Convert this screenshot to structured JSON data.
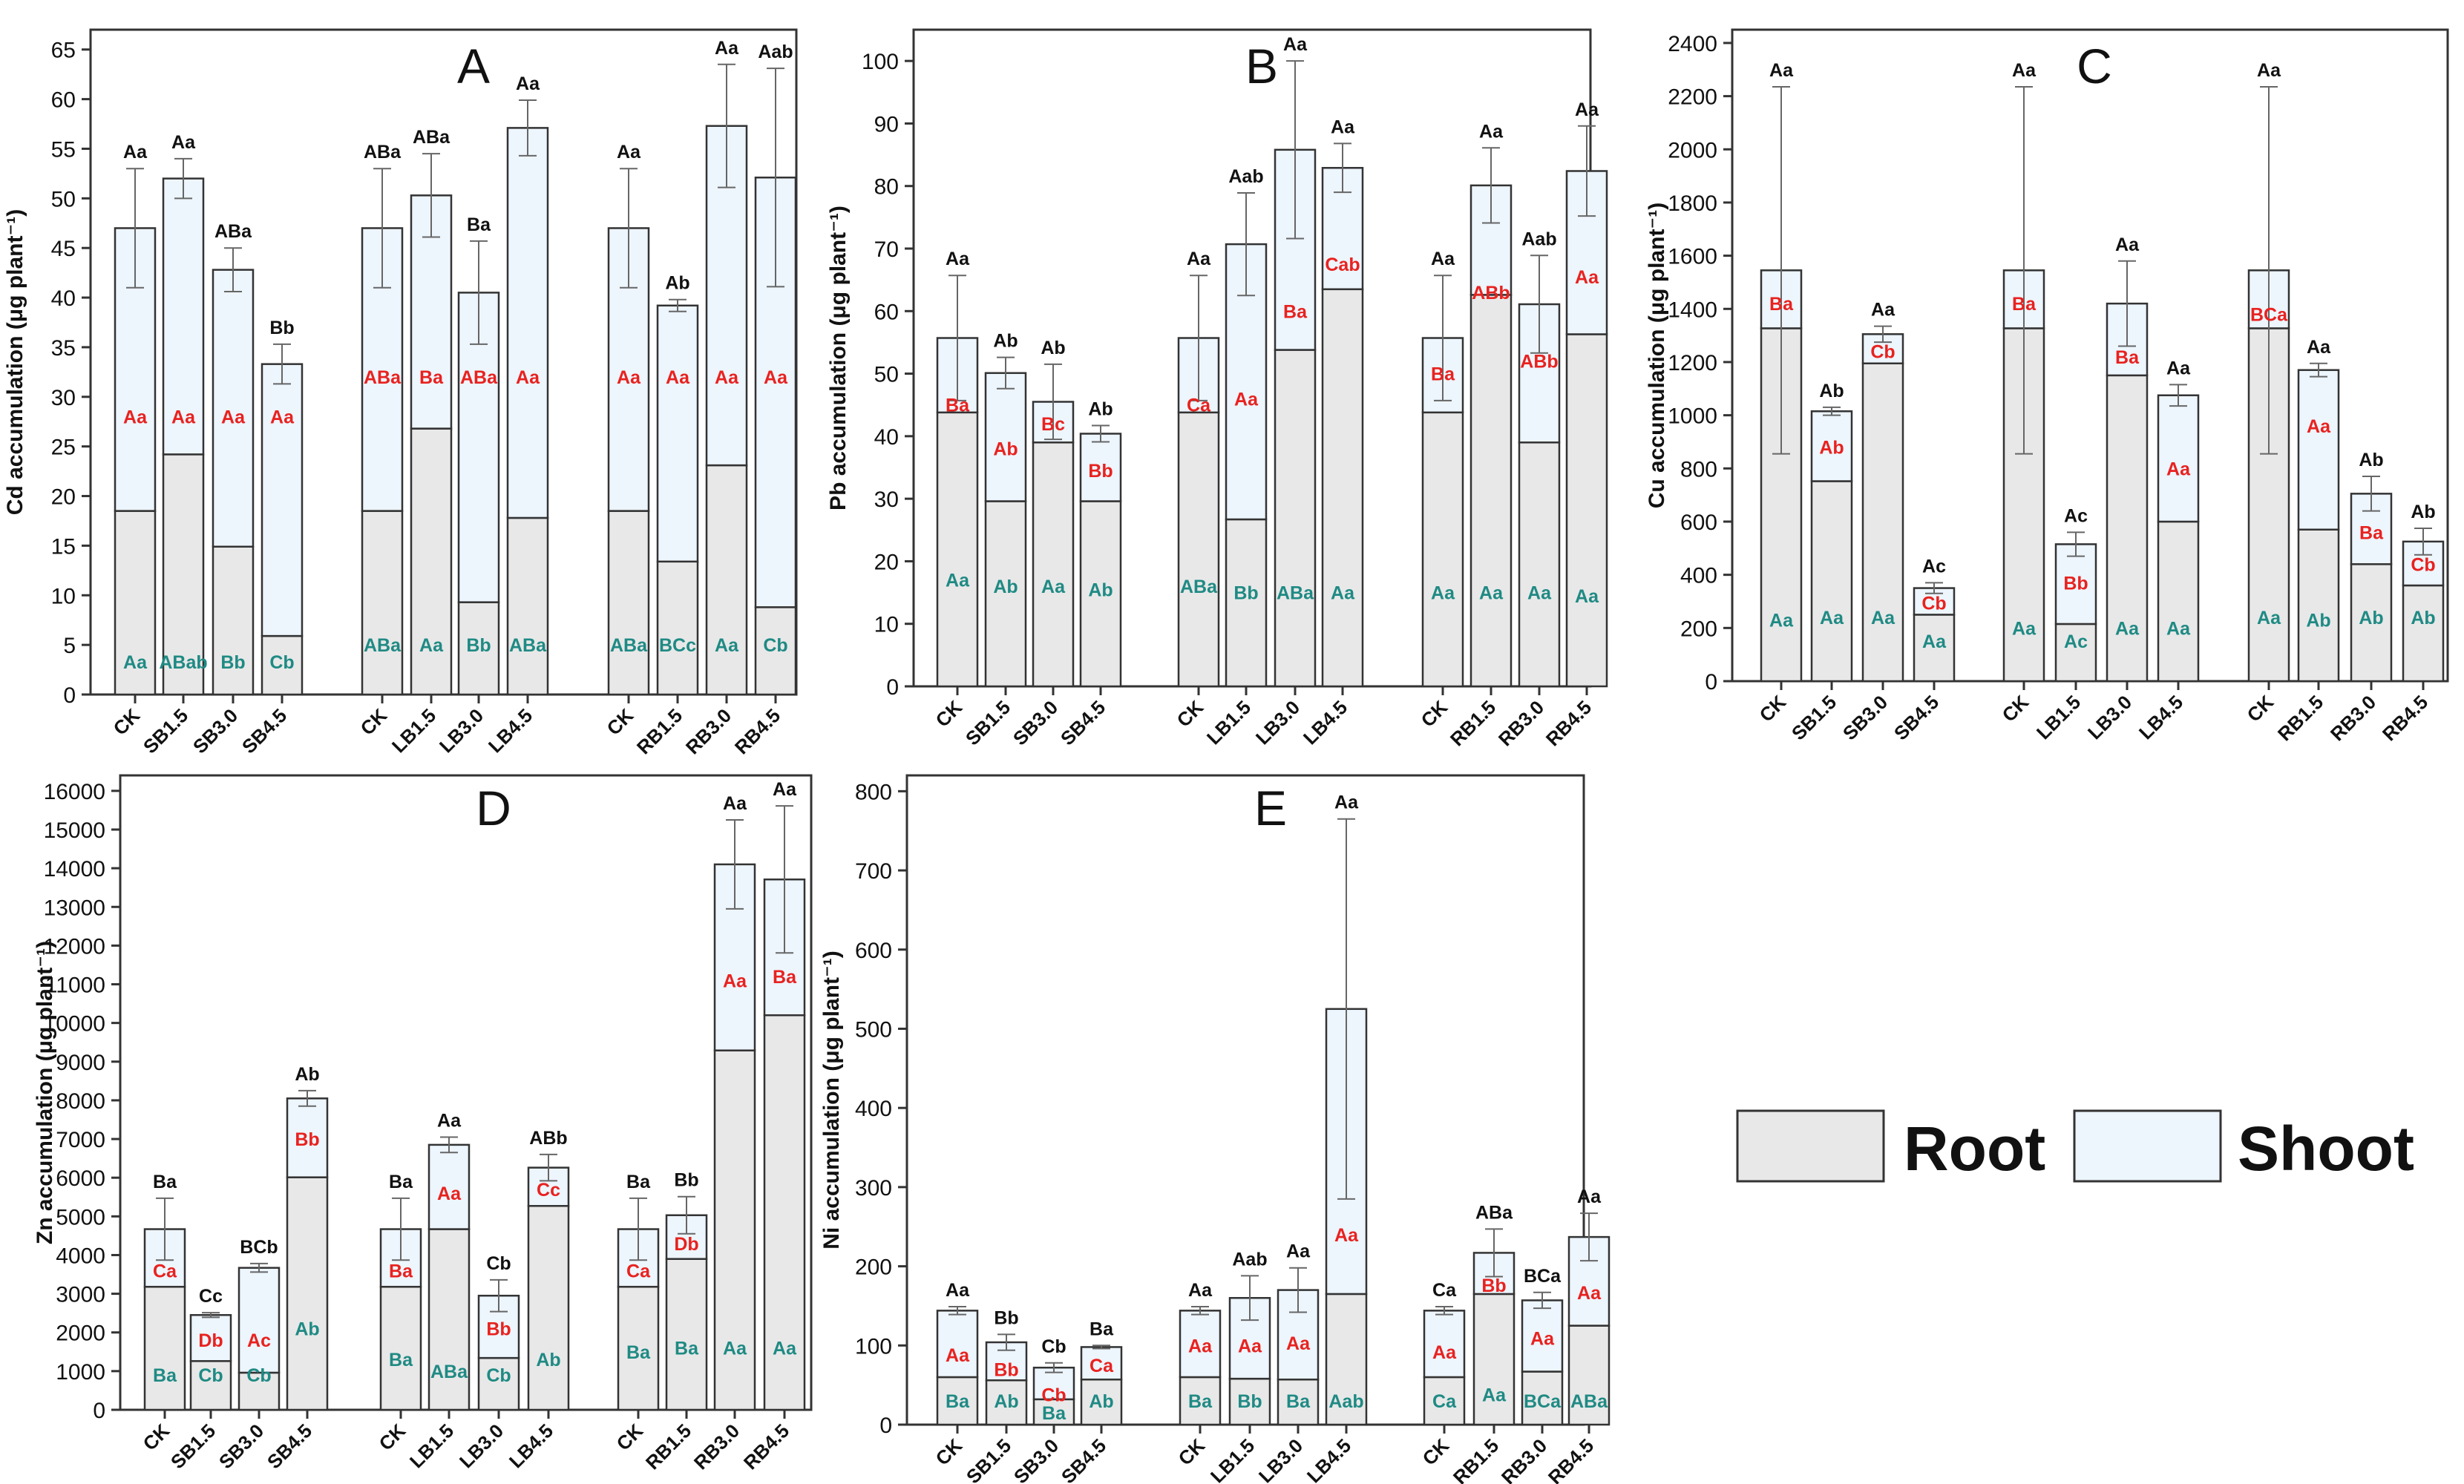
{
  "colors": {
    "root": "#e8e8e8",
    "shoot": "#edf5fd",
    "root_letters": "#1f8a84",
    "shoot_letters": "#e8221f",
    "total_letters": "#111111",
    "frame": "#333333"
  },
  "legend": {
    "root": "Root",
    "shoot": "Shoot"
  },
  "categories": [
    "CK",
    "SB1.5",
    "SB3.0",
    "SB4.5",
    "CK",
    "LB1.5",
    "LB3.0",
    "LB4.5",
    "CK",
    "RB1.5",
    "RB3.0",
    "RB4.5"
  ],
  "chart_data": [
    {
      "panel": "A",
      "type": "bar",
      "stacked": true,
      "ylabel": "Cd accumulation (μg plant⁻¹)",
      "ylim": [
        0,
        67
      ],
      "ytick_step": 5,
      "series": [
        {
          "name": "Root",
          "values": [
            18.5,
            24.2,
            14.9,
            5.9,
            18.5,
            26.8,
            9.3,
            17.8,
            18.5,
            13.4,
            23.1,
            8.8
          ]
        },
        {
          "name": "Shoot",
          "values": [
            28.5,
            27.8,
            27.9,
            27.4,
            28.5,
            23.5,
            31.2,
            39.3,
            28.5,
            25.8,
            34.2,
            43.3
          ]
        }
      ],
      "totals": [
        47.0,
        52.0,
        42.8,
        33.3,
        47.0,
        50.3,
        40.5,
        57.1,
        47.0,
        39.2,
        57.3,
        52.1
      ],
      "errors": [
        6.0,
        2.0,
        2.2,
        2.0,
        6.0,
        4.2,
        5.2,
        2.8,
        6.0,
        0.6,
        6.2,
        11.0
      ],
      "total_letters": [
        "Aa",
        "Aa",
        "ABa",
        "Bb",
        "ABa",
        "ABa",
        "Ba",
        "Aa",
        "Aa",
        "Ab",
        "Aa",
        "Aab"
      ],
      "shoot_letters": [
        "Aa",
        "Aa",
        "Aa",
        "Aa",
        "ABa",
        "Ba",
        "ABa",
        "Aa",
        "Aa",
        "Aa",
        "Aa",
        "Aa"
      ],
      "root_letters": [
        "Aa",
        "ABab",
        "Bb",
        "Cb",
        "ABa",
        "Aa",
        "Bb",
        "ABa",
        "ABa",
        "BCc",
        "Aa",
        "Cb"
      ],
      "shoot_label_values": [
        28.0,
        28.0,
        28.0,
        28.0,
        32.0,
        32.0,
        32.0,
        32.0,
        32.0,
        32.0,
        32.0,
        32.0
      ],
      "root_label_values": [
        3.3,
        3.3,
        3.3,
        3.3,
        5.0,
        5.0,
        5.0,
        5.0,
        5.0,
        5.0,
        5.0,
        5.0
      ]
    },
    {
      "panel": "B",
      "type": "bar",
      "stacked": true,
      "ylabel": "Pb accumulation (μg plant⁻¹)",
      "ylim": [
        0,
        105
      ],
      "ytick_step": 10,
      "series": [
        {
          "name": "Root",
          "values": [
            43.8,
            29.6,
            39.0,
            29.6,
            43.8,
            26.7,
            53.8,
            63.5,
            43.8,
            62.6,
            39.0,
            56.3
          ]
        },
        {
          "name": "Shoot",
          "values": [
            11.9,
            20.5,
            6.5,
            10.8,
            11.9,
            44.0,
            32.0,
            19.4,
            11.9,
            17.5,
            22.1,
            26.1
          ]
        }
      ],
      "totals": [
        55.7,
        50.1,
        45.5,
        40.4,
        55.7,
        70.7,
        85.8,
        82.9,
        55.7,
        80.1,
        61.1,
        82.4
      ],
      "errors": [
        10.0,
        2.5,
        6.0,
        1.3,
        10.0,
        8.2,
        14.2,
        3.9,
        10.0,
        6.0,
        7.8,
        7.2
      ],
      "total_letters": [
        "Aa",
        "Ab",
        "Ab",
        "Ab",
        "Aa",
        "Aab",
        "Aa",
        "Aa",
        "Aa",
        "Aa",
        "Aab",
        "Aa"
      ],
      "shoot_letters": [
        "Ba",
        "Ab",
        "Bc",
        "Bb",
        "Ca",
        "Aa",
        "Ba",
        "Cab",
        "Ba",
        "ABb",
        "ABb",
        "Aa"
      ],
      "root_letters": [
        "Aa",
        "Ab",
        "Aa",
        "Ab",
        "ABa",
        "Bb",
        "ABa",
        "Aa",
        "Aa",
        "Aa",
        "Aa",
        "Aa"
      ],
      "shoot_label_values": [
        45.0,
        38.0,
        42.0,
        34.5,
        45.0,
        46.0,
        60.0,
        67.5,
        50.0,
        63.0,
        52.0,
        65.5
      ],
      "root_label_values": [
        17.0,
        16.0,
        16.0,
        15.5,
        16.0,
        15.0,
        15.0,
        15.0,
        15.0,
        15.0,
        15.0,
        14.5
      ]
    },
    {
      "panel": "C",
      "type": "bar",
      "stacked": true,
      "ylabel": "Cu accumulation (μg plant⁻¹)",
      "ylim": [
        0,
        2450
      ],
      "ytick_step": 200,
      "series": [
        {
          "name": "Root",
          "values": [
            1327,
            752,
            1195,
            250,
            1327,
            215,
            1150,
            600,
            1327,
            570,
            440,
            360
          ]
        },
        {
          "name": "Shoot",
          "values": [
            218,
            263,
            110,
            100,
            218,
            300,
            270,
            475,
            218,
            600,
            265,
            165
          ]
        }
      ],
      "totals": [
        1545,
        1015,
        1305,
        350,
        1545,
        515,
        1420,
        1075,
        1545,
        1170,
        705,
        525
      ],
      "errors": [
        690,
        15,
        30,
        20,
        690,
        45,
        160,
        40,
        690,
        25,
        65,
        50
      ],
      "total_letters": [
        "Aa",
        "Ab",
        "Aa",
        "Ac",
        "Aa",
        "Ac",
        "Aa",
        "Aa",
        "Aa",
        "Aa",
        "Ab",
        "Ab"
      ],
      "shoot_letters": [
        "Ba",
        "Ab",
        "Cb",
        "Cb",
        "Ba",
        "Bb",
        "Ba",
        "Aa",
        "BCa",
        "Aa",
        "Ba",
        "Cb"
      ],
      "root_letters": [
        "Aa",
        "Aa",
        "Aa",
        "Aa",
        "Aa",
        "Ac",
        "Aa",
        "Aa",
        "Aa",
        "Ab",
        "Ab",
        "Ab"
      ],
      "shoot_label_values": [
        1420,
        880,
        1240,
        295,
        1420,
        370,
        1220,
        800,
        1380,
        960,
        560,
        440
      ],
      "root_label_values": [
        230,
        240,
        240,
        150,
        200,
        150,
        200,
        200,
        240,
        230,
        240,
        240
      ]
    },
    {
      "panel": "D",
      "type": "bar",
      "stacked": true,
      "ylabel": "Zn accumulation (μg plant⁻¹)",
      "ylim": [
        0,
        16400
      ],
      "ytick_step": 1000,
      "series": [
        {
          "name": "Root",
          "values": [
            3180,
            1260,
            960,
            6010,
            3180,
            4670,
            1340,
            5270,
            3180,
            3900,
            9290,
            10200
          ]
        },
        {
          "name": "Shoot",
          "values": [
            1490,
            1190,
            2710,
            2040,
            1490,
            2180,
            1610,
            990,
            1490,
            1130,
            4810,
            3510
          ]
        }
      ],
      "totals": [
        4670,
        2450,
        3670,
        8050,
        4670,
        6850,
        2950,
        6260,
        4670,
        5030,
        14100,
        13710
      ],
      "errors": [
        800,
        60,
        110,
        200,
        800,
        200,
        410,
        340,
        800,
        480,
        1150,
        1900
      ],
      "total_letters": [
        "Ba",
        "Cc",
        "BCb",
        "Ab",
        "Ba",
        "Aa",
        "Cb",
        "ABb",
        "Ba",
        "Bb",
        "Aa",
        "Aa"
      ],
      "shoot_letters": [
        "Ca",
        "Db",
        "Ac",
        "Bb",
        "Ba",
        "Aa",
        "Bb",
        "Cc",
        "Ca",
        "Db",
        "Aa",
        "Ba"
      ],
      "root_letters": [
        "Ba",
        "Cb",
        "Cb",
        "Ab",
        "Ba",
        "ABa",
        "Cb",
        "Ab",
        "Ba",
        "Ba",
        "Aa",
        "Aa"
      ],
      "shoot_label_values": [
        3600,
        1800,
        1800,
        7000,
        3600,
        5600,
        2100,
        5700,
        3600,
        4300,
        11100,
        11200
      ],
      "root_label_values": [
        900,
        900,
        900,
        2100,
        1300,
        1000,
        900,
        1300,
        1500,
        1600,
        1600,
        1600
      ]
    },
    {
      "panel": "E",
      "type": "bar",
      "stacked": true,
      "ylabel": "Ni accumulation (μg plant⁻¹)",
      "ylim": [
        0,
        820
      ],
      "ytick_step": 100,
      "series": [
        {
          "name": "Root",
          "values": [
            60,
            56,
            32,
            57,
            60,
            58,
            57,
            165,
            60,
            165,
            67,
            125
          ]
        },
        {
          "name": "Shoot",
          "values": [
            84,
            48,
            40,
            41,
            84,
            102,
            113,
            360,
            84,
            52,
            90,
            112
          ]
        }
      ],
      "totals": [
        144,
        104,
        72,
        98,
        144,
        160,
        170,
        525,
        144,
        217,
        157,
        237
      ],
      "errors": [
        5,
        10,
        6,
        2,
        5,
        28,
        28,
        240,
        5,
        30,
        10,
        30
      ],
      "total_letters": [
        "Aa",
        "Bb",
        "Cb",
        "Ba",
        "Aa",
        "Aab",
        "Aa",
        "Aa",
        "Ca",
        "ABa",
        "BCa",
        "Aa"
      ],
      "shoot_letters": [
        "Aa",
        "Bb",
        "Cb",
        "Ca",
        "Aa",
        "Aa",
        "Aa",
        "Aa",
        "Aa",
        "Bb",
        "Aa",
        "Aa"
      ],
      "root_letters": [
        "Ba",
        "Ab",
        "Ba",
        "Ab",
        "Ba",
        "Bb",
        "Ba",
        "Aab",
        "Ca",
        "Aa",
        "BCa",
        "ABa"
      ],
      "shoot_label_values": [
        88,
        70,
        38,
        75,
        100,
        100,
        103,
        240,
        92,
        176,
        109,
        167
      ],
      "root_label_values": [
        30,
        30,
        15,
        30,
        30,
        30,
        30,
        30,
        30,
        38,
        30,
        30
      ]
    }
  ]
}
